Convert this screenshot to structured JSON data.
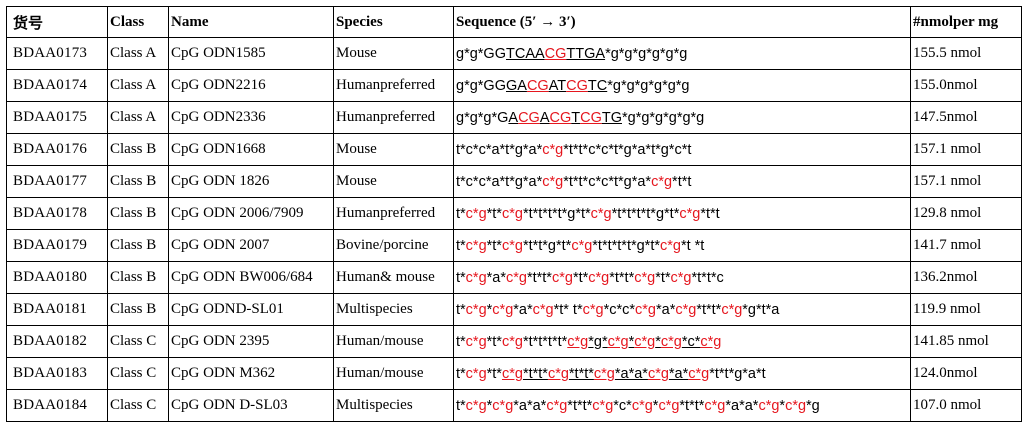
{
  "table": {
    "headers": [
      "货号",
      "Class",
      "Name",
      "Species",
      "Sequence (5′ → 3′)",
      "#nmolper mg"
    ],
    "colors": {
      "highlight": "#e5161e",
      "text": "#000000",
      "border": "#000000"
    },
    "rows": [
      {
        "id": "BDAA0173",
        "class": "Class A",
        "name": "CpG ODN1585",
        "species": "Mouse",
        "seq": [
          {
            "t": "g*g*GG"
          },
          {
            "t": "TCAA",
            "u": true
          },
          {
            "t": "CG",
            "u": true,
            "r": true
          },
          {
            "t": "TTGA",
            "u": true
          },
          {
            "t": "*g*g*g*g*g*g"
          }
        ],
        "amount": "155.5 nmol"
      },
      {
        "id": "BDAA0174",
        "class": "Class A",
        "name": "CpG ODN2216",
        "species": "Humanpreferred",
        "seq": [
          {
            "t": "g*g*GG"
          },
          {
            "t": "GA",
            "u": true
          },
          {
            "t": "CG",
            "u": true,
            "r": true
          },
          {
            "t": "AT",
            "u": true
          },
          {
            "t": "CG",
            "u": true,
            "r": true
          },
          {
            "t": "TC",
            "u": true
          },
          {
            "t": "*g*g*g*g*g*g"
          }
        ],
        "amount": "155.0nmol"
      },
      {
        "id": "BDAA0175",
        "class": "Class A",
        "name": "CpG ODN2336",
        "species": "Humanpreferred",
        "seq": [
          {
            "t": "g*g*g*G"
          },
          {
            "t": "A",
            "u": true
          },
          {
            "t": "CG",
            "u": true,
            "r": true
          },
          {
            "t": "A",
            "u": true
          },
          {
            "t": "CG",
            "u": true,
            "r": true
          },
          {
            "t": "T",
            "u": true
          },
          {
            "t": "CG",
            "u": true,
            "r": true
          },
          {
            "t": "TG",
            "u": true
          },
          {
            "t": "*g*g*g*g*g*g"
          }
        ],
        "amount": "147.5nmol"
      },
      {
        "id": "BDAA0176",
        "class": "Class B",
        "name": "CpG ODN1668",
        "species": "Mouse",
        "seq": [
          {
            "t": "t*c*c*a*t*g*a*"
          },
          {
            "t": "c*g",
            "r": true
          },
          {
            "t": "*t*t*c*c*t*g*a*t*g*c*t"
          }
        ],
        "amount": "157.1 nmol"
      },
      {
        "id": "BDAA0177",
        "class": "Class B",
        "name": "CpG ODN 1826",
        "species": "Mouse",
        "seq": [
          {
            "t": "t*c*c*a*t*g*a*"
          },
          {
            "t": "c*g",
            "r": true
          },
          {
            "t": "*t*t*c*c*t*g*a*"
          },
          {
            "t": "c*g",
            "r": true
          },
          {
            "t": "*t*t"
          }
        ],
        "amount": "157.1 nmol"
      },
      {
        "id": "BDAA0178",
        "class": "Class B",
        "name": "CpG ODN 2006/7909",
        "species": "Humanpreferred",
        "seq": [
          {
            "t": "t*"
          },
          {
            "t": "c*g",
            "r": true
          },
          {
            "t": "*t*"
          },
          {
            "t": "c*g",
            "r": true
          },
          {
            "t": "*t*t*t*t*g*t*"
          },
          {
            "t": "c*g",
            "r": true
          },
          {
            "t": "*t*t*t*t*g*t*"
          },
          {
            "t": "c*g",
            "r": true
          },
          {
            "t": "*t*t"
          }
        ],
        "amount": "129.8 nmol"
      },
      {
        "id": "BDAA0179",
        "class": "Class B",
        "name": "CpG ODN 2007",
        "species": "Bovine/porcine",
        "seq": [
          {
            "t": "t*"
          },
          {
            "t": "c*g",
            "r": true
          },
          {
            "t": "*t*"
          },
          {
            "t": "c*g",
            "r": true
          },
          {
            "t": "*t*t*g*t*"
          },
          {
            "t": "c*g",
            "r": true
          },
          {
            "t": "*t*t*t*t*g*t*"
          },
          {
            "t": "c*g",
            "r": true
          },
          {
            "t": "*t *t"
          }
        ],
        "amount": "141.7 nmol"
      },
      {
        "id": "BDAA0180",
        "class": "Class B",
        "name": "CpG ODN BW006/684",
        "species": "Human& mouse",
        "seq": [
          {
            "t": "t*"
          },
          {
            "t": "c*g",
            "r": true
          },
          {
            "t": "*a*"
          },
          {
            "t": "c*g",
            "r": true
          },
          {
            "t": "*t*t*"
          },
          {
            "t": "c*g",
            "r": true
          },
          {
            "t": "*t*"
          },
          {
            "t": "c*g",
            "r": true
          },
          {
            "t": "*t*t*"
          },
          {
            "t": "c*g",
            "r": true
          },
          {
            "t": "*t*"
          },
          {
            "t": "c*g",
            "r": true
          },
          {
            "t": "*t*t*c"
          }
        ],
        "amount": "136.2nmol"
      },
      {
        "id": "BDAA0181",
        "class": "Class B",
        "name": "CpG ODND-SL01",
        "species": "Multispecies",
        "seq": [
          {
            "t": "t*"
          },
          {
            "t": "c*g",
            "r": true
          },
          {
            "t": "*"
          },
          {
            "t": "c*g",
            "r": true
          },
          {
            "t": "*a*"
          },
          {
            "t": "c*g",
            "r": true
          },
          {
            "t": "*t* t*"
          },
          {
            "t": "c*g",
            "r": true
          },
          {
            "t": "*c*c*"
          },
          {
            "t": "c*g",
            "r": true
          },
          {
            "t": "*a*"
          },
          {
            "t": "c*g",
            "r": true
          },
          {
            "t": "*t*t*"
          },
          {
            "t": "c*g",
            "r": true
          },
          {
            "t": "*g*t*a"
          }
        ],
        "amount": "119.9 nmol"
      },
      {
        "id": "BDAA0182",
        "class": "Class C",
        "name": "CpG ODN 2395",
        "species": "Human/mouse",
        "seq": [
          {
            "t": "t*"
          },
          {
            "t": "c*g",
            "r": true
          },
          {
            "t": "*t*"
          },
          {
            "t": "c*g",
            "r": true
          },
          {
            "t": "*t*t*t*t*"
          },
          {
            "t": "c*g",
            "r": true,
            "u": true
          },
          {
            "t": "*g*",
            "u": true
          },
          {
            "t": "c*g",
            "r": true,
            "u": true
          },
          {
            "t": "*",
            "u": true
          },
          {
            "t": "c*g",
            "r": true,
            "u": true
          },
          {
            "t": "*",
            "u": true
          },
          {
            "t": "c*g",
            "r": true,
            "u": true
          },
          {
            "t": "*c*",
            "u": true
          },
          {
            "t": "c*g",
            "r": true,
            "u": true
          }
        ],
        "amount": "141.85 nmol"
      },
      {
        "id": "BDAA0183",
        "class": "Class C",
        "name": "CpG ODN M362",
        "species": "Human/mouse",
        "seq": [
          {
            "t": "t*"
          },
          {
            "t": "c*g",
            "r": true
          },
          {
            "t": "*t*"
          },
          {
            "t": "c*g",
            "r": true,
            "u": true
          },
          {
            "t": "*t*t*",
            "u": true
          },
          {
            "t": "c*g",
            "r": true,
            "u": true
          },
          {
            "t": "*t*t*",
            "u": true
          },
          {
            "t": "c*g",
            "r": true,
            "u": true
          },
          {
            "t": "*a*a*",
            "u": true
          },
          {
            "t": "c*g",
            "r": true,
            "u": true
          },
          {
            "t": "*a*",
            "u": true
          },
          {
            "t": "c*g",
            "r": true,
            "u": true
          },
          {
            "t": "*t*t*g*a*t"
          }
        ],
        "amount": "124.0nmol"
      },
      {
        "id": "BDAA0184",
        "class": "Class C",
        "name": "CpG ODN D-SL03",
        "species": "Multispecies",
        "seq": [
          {
            "t": "t*"
          },
          {
            "t": "c*g",
            "r": true
          },
          {
            "t": "*"
          },
          {
            "t": "c*g",
            "r": true
          },
          {
            "t": "*a*a*"
          },
          {
            "t": "c*g",
            "r": true
          },
          {
            "t": "*t*t*"
          },
          {
            "t": "c*g",
            "r": true
          },
          {
            "t": "*c*"
          },
          {
            "t": "c*g",
            "r": true
          },
          {
            "t": "*"
          },
          {
            "t": "c*g",
            "r": true
          },
          {
            "t": "*t*t*"
          },
          {
            "t": "c*g",
            "r": true
          },
          {
            "t": "*a*a*"
          },
          {
            "t": "c*g",
            "r": true
          },
          {
            "t": "*"
          },
          {
            "t": "c*g",
            "r": true
          },
          {
            "t": "*g"
          }
        ],
        "amount": "107.0 nmol"
      }
    ]
  }
}
